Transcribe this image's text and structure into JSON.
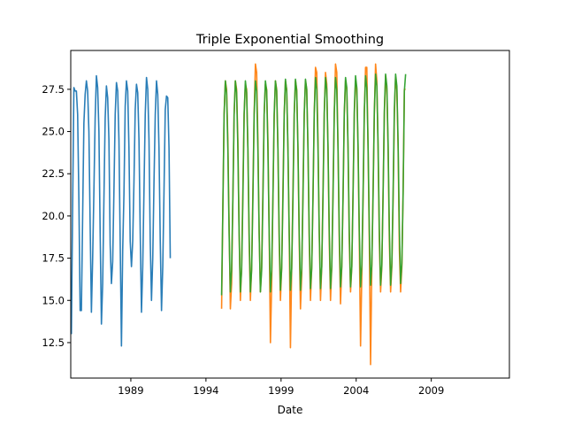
{
  "chart_data": {
    "type": "line",
    "title": "Triple Exponential Smoothing",
    "xlabel": "Date",
    "ylabel": "",
    "x_range": [
      1985.0,
      2014.2
    ],
    "ylim": [
      10.4,
      29.8
    ],
    "x_ticks": [
      1989,
      1994,
      1999,
      2004,
      2009
    ],
    "y_ticks": [
      12.5,
      15.0,
      17.5,
      20.0,
      22.5,
      25.0,
      27.5
    ],
    "grid": false,
    "legend": "none",
    "sampling": "monthly, values read at mid-month",
    "series": [
      {
        "color": "#1f77b4",
        "x_start": 1985.0,
        "values": [
          13.0,
          20.5,
          27.6,
          27.4,
          27.4,
          26.0,
          21.0,
          14.4,
          14.4,
          20.0,
          25.5,
          27.2,
          28.0,
          27.4,
          25.0,
          19.5,
          14.3,
          17.5,
          21.5,
          25.8,
          28.3,
          27.6,
          25.0,
          19.0,
          13.6,
          16.0,
          21.0,
          25.8,
          27.7,
          27.0,
          24.5,
          18.3,
          16.0,
          17.3,
          21.5,
          26.0,
          27.9,
          27.4,
          24.5,
          18.5,
          12.3,
          18.0,
          21.3,
          26.5,
          28.0,
          27.4,
          24.0,
          18.5,
          17.0,
          18.5,
          22.0,
          26.3,
          27.8,
          27.3,
          24.5,
          19.0,
          14.3,
          17.0,
          21.5,
          26.0,
          28.2,
          27.5,
          24.5,
          18.5,
          15.0,
          17.5,
          22.0,
          26.0,
          28.0,
          27.2,
          24.0,
          18.5,
          14.4,
          17.0,
          21.5,
          26.3,
          27.1,
          27.0,
          24.0,
          17.5
        ]
      },
      {
        "color": "#ff7f0e",
        "x_start": 1995.0,
        "values": [
          14.5,
          20.5,
          26.0,
          28.0,
          27.5,
          24.5,
          19.5,
          14.5,
          16.0,
          21.0,
          26.0,
          28.0,
          27.5,
          24.5,
          19.0,
          15.0,
          17.0,
          21.5,
          26.0,
          27.8,
          27.5,
          24.0,
          18.5,
          15.0,
          17.0,
          21.5,
          26.0,
          29.0,
          28.5,
          24.5,
          19.0,
          15.5,
          17.0,
          21.5,
          26.0,
          27.8,
          27.5,
          24.5,
          19.0,
          12.5,
          16.0,
          21.0,
          25.8,
          28.0,
          27.5,
          24.0,
          18.5,
          15.0,
          17.0,
          21.5,
          26.0,
          28.0,
          27.5,
          24.0,
          19.0,
          12.2,
          17.0,
          21.5,
          26.0,
          28.0,
          27.5,
          24.0,
          18.5,
          14.5,
          16.5,
          21.5,
          26.0,
          28.0,
          27.5,
          24.0,
          18.5,
          15.0,
          17.0,
          21.0,
          26.0,
          28.8,
          28.5,
          24.5,
          19.0,
          15.0,
          17.0,
          21.5,
          26.0,
          28.5,
          27.8,
          24.0,
          18.5,
          15.0,
          17.0,
          21.5,
          26.0,
          29.0,
          28.5,
          24.0,
          18.5,
          14.8,
          17.0,
          21.0,
          26.0,
          28.0,
          27.5,
          24.0,
          18.5,
          15.5,
          17.0,
          21.5,
          26.0,
          28.0,
          27.5,
          24.0,
          18.5,
          12.3,
          16.5,
          21.0,
          26.0,
          28.8,
          28.8,
          24.0,
          18.5,
          11.2,
          17.0,
          21.5,
          26.0,
          29.0,
          28.0,
          24.0,
          18.5,
          15.5,
          17.0,
          21.5,
          26.0,
          28.3,
          27.5,
          24.0,
          18.5,
          15.5,
          17.0,
          21.0,
          26.0,
          28.2,
          27.5,
          24.0,
          18.0,
          15.5,
          17.0,
          21.5,
          27.5,
          27.5
        ]
      },
      {
        "color": "#2ca02c",
        "x_start": 1995.0,
        "values": [
          15.3,
          20.5,
          26.0,
          28.0,
          27.3,
          24.0,
          19.0,
          15.5,
          16.8,
          21.0,
          26.0,
          28.0,
          27.3,
          24.0,
          19.0,
          15.5,
          16.8,
          21.0,
          26.0,
          28.0,
          27.3,
          24.0,
          19.0,
          15.5,
          16.8,
          21.0,
          26.0,
          28.0,
          27.4,
          24.0,
          19.0,
          15.5,
          16.8,
          21.0,
          26.0,
          28.0,
          27.4,
          24.0,
          19.0,
          15.5,
          16.8,
          21.0,
          26.0,
          28.0,
          27.4,
          24.0,
          19.0,
          15.6,
          16.9,
          21.0,
          26.0,
          28.1,
          27.4,
          24.0,
          19.0,
          15.6,
          16.9,
          21.0,
          26.0,
          28.1,
          27.4,
          24.0,
          19.0,
          15.6,
          16.9,
          21.0,
          26.0,
          28.1,
          27.5,
          24.0,
          19.0,
          15.7,
          16.9,
          21.1,
          26.1,
          28.2,
          27.5,
          24.1,
          19.1,
          15.7,
          17.0,
          21.1,
          26.1,
          28.2,
          27.5,
          24.1,
          19.1,
          15.7,
          17.0,
          21.1,
          26.1,
          28.2,
          27.5,
          24.1,
          19.1,
          15.8,
          17.0,
          21.1,
          26.1,
          28.2,
          27.6,
          24.1,
          19.1,
          15.8,
          17.0,
          21.2,
          26.2,
          28.3,
          27.6,
          24.2,
          19.1,
          15.8,
          17.1,
          21.2,
          26.2,
          28.3,
          27.6,
          24.2,
          19.2,
          15.9,
          17.1,
          21.2,
          26.2,
          28.4,
          27.7,
          24.2,
          19.2,
          15.9,
          17.1,
          21.2,
          26.2,
          28.4,
          27.7,
          24.3,
          19.2,
          15.9,
          17.2,
          21.3,
          26.3,
          28.4,
          27.7,
          24.3,
          19.2,
          16.0,
          17.2,
          21.3,
          27.4,
          28.4
        ]
      }
    ]
  }
}
